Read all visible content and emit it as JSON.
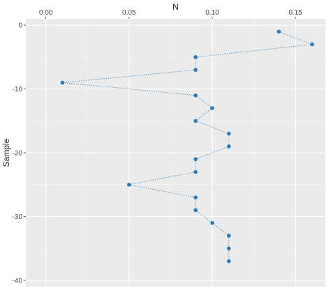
{
  "chart_data": {
    "type": "scatter",
    "xlabel": "N",
    "ylabel": "Sample",
    "x_axis_position": "top",
    "xlim": [
      -0.012,
      0.168
    ],
    "ylim": [
      -41,
      1
    ],
    "xticks": [
      0.0,
      0.05,
      0.1,
      0.15
    ],
    "xtick_labels": [
      "0.00",
      "0.05",
      "0.10",
      "0.15"
    ],
    "yticks": [
      0,
      -10,
      -20,
      -30,
      -40
    ],
    "ytick_labels": [
      "0",
      "-10",
      "-20",
      "-30",
      "-40"
    ],
    "grid": true,
    "connected": true,
    "line_style": "dotted",
    "series": [
      {
        "points": [
          {
            "x": 0.14,
            "y": -1
          },
          {
            "x": 0.16,
            "y": -3
          },
          {
            "x": 0.09,
            "y": -5
          },
          {
            "x": 0.09,
            "y": -7
          },
          {
            "x": 0.01,
            "y": -9
          },
          {
            "x": 0.09,
            "y": -11
          },
          {
            "x": 0.1,
            "y": -13
          },
          {
            "x": 0.09,
            "y": -15
          },
          {
            "x": 0.11,
            "y": -17
          },
          {
            "x": 0.11,
            "y": -19
          },
          {
            "x": 0.09,
            "y": -21
          },
          {
            "x": 0.09,
            "y": -23
          },
          {
            "x": 0.05,
            "y": -25
          },
          {
            "x": 0.09,
            "y": -27
          },
          {
            "x": 0.09,
            "y": -29
          },
          {
            "x": 0.1,
            "y": -31
          },
          {
            "x": 0.11,
            "y": -33
          },
          {
            "x": 0.11,
            "y": -35
          },
          {
            "x": 0.11,
            "y": -37
          }
        ]
      }
    ]
  },
  "colors": {
    "panel_background": "#ebebeb",
    "grid_major": "#ffffff",
    "grid_minor": "#f5f5f5",
    "point": "#2b7bba",
    "line": "#2b7bba",
    "tick_text": "#4d4d4d",
    "title_text": "#1a1a1a"
  }
}
